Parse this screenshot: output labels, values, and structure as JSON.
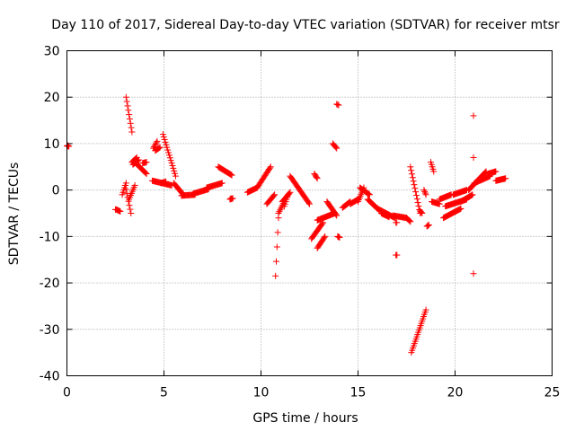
{
  "chart_data": {
    "type": "scatter",
    "title": "Day 110 of 2017, Sidereal Day-to-day VTEC variation (SDTVAR) for receiver mtsr",
    "xlabel": "GPS time / hours",
    "ylabel": "SDTVAR / TECUs",
    "xlim": [
      0,
      25
    ],
    "ylim": [
      -40,
      30
    ],
    "xticks": [
      0,
      5,
      10,
      15,
      20,
      25
    ],
    "yticks": [
      -40,
      -30,
      -20,
      -10,
      0,
      10,
      20,
      30
    ],
    "xtick_labels": [
      "0",
      "5",
      "10",
      "15",
      "20",
      "25"
    ],
    "ytick_labels": [
      "-40",
      "-30",
      "-20",
      "-10",
      "0",
      "10",
      "20",
      "30"
    ],
    "grid": true,
    "marker": "+",
    "color": "#ff0000",
    "segments": [
      [
        0.0,
        9.5,
        0.1,
        9.4
      ],
      [
        2.55,
        -4.2,
        2.75,
        -4.6
      ],
      [
        2.85,
        -1.0,
        3.05,
        1.5
      ],
      [
        3.0,
        1.0,
        3.3,
        -5.0
      ],
      [
        3.05,
        20.0,
        3.35,
        12.5
      ],
      [
        3.2,
        -2.0,
        3.5,
        1.0
      ],
      [
        3.35,
        6.0,
        3.6,
        7.0
      ],
      [
        3.5,
        6.0,
        4.1,
        3.5
      ],
      [
        3.4,
        5.5,
        3.7,
        6.5
      ],
      [
        3.9,
        5.8,
        4.1,
        6.0
      ],
      [
        4.4,
        2.0,
        5.4,
        1.0
      ],
      [
        4.45,
        9.0,
        4.65,
        10.5
      ],
      [
        4.55,
        8.5,
        4.8,
        9.2
      ],
      [
        4.85,
        1.5,
        5.1,
        1.8
      ],
      [
        4.95,
        12.0,
        5.6,
        3.0
      ],
      [
        5.5,
        1.5,
        6.0,
        -1.0
      ],
      [
        5.9,
        -1.2,
        6.6,
        -1.0
      ],
      [
        6.5,
        -0.8,
        7.3,
        0.2
      ],
      [
        7.2,
        0.5,
        8.0,
        1.5
      ],
      [
        7.8,
        5.0,
        8.5,
        3.2
      ],
      [
        8.4,
        -2.0,
        8.55,
        -1.8
      ],
      [
        9.3,
        -0.5,
        9.8,
        0.5
      ],
      [
        9.8,
        0.5,
        10.5,
        5.0
      ],
      [
        10.3,
        -3.0,
        10.7,
        -1.0
      ],
      [
        10.75,
        -18.5,
        10.9,
        -6.0
      ],
      [
        10.9,
        -5.0,
        11.2,
        -2.5
      ],
      [
        11.1,
        -2.5,
        11.5,
        -0.5
      ],
      [
        11.2,
        -3.5,
        11.4,
        -1.0
      ],
      [
        11.5,
        3.0,
        12.5,
        -3.0
      ],
      [
        12.6,
        -10.5,
        13.2,
        -7.0
      ],
      [
        12.75,
        3.5,
        12.9,
        2.5
      ],
      [
        12.9,
        -12.5,
        13.3,
        -10.0
      ],
      [
        12.9,
        -6.5,
        13.8,
        -5.0
      ],
      [
        13.4,
        -2.5,
        13.9,
        -5.5
      ],
      [
        13.7,
        10.0,
        13.9,
        9.0
      ],
      [
        13.9,
        18.5,
        14.0,
        18.3
      ],
      [
        13.95,
        -10.0,
        14.05,
        -10.2
      ],
      [
        14.2,
        -3.8,
        14.6,
        -2.5
      ],
      [
        14.6,
        -3.0,
        15.0,
        -2.0
      ],
      [
        15.0,
        -2.5,
        15.3,
        0.5
      ],
      [
        15.1,
        0.5,
        15.6,
        -1.0
      ],
      [
        15.5,
        -2.0,
        16.0,
        -4.0
      ],
      [
        16.0,
        -4.0,
        16.9,
        -6.0
      ],
      [
        16.2,
        -5.0,
        16.6,
        -5.8
      ],
      [
        16.8,
        -5.5,
        17.5,
        -6.0
      ],
      [
        16.95,
        -7.0,
        17.0,
        -7.0
      ],
      [
        17.0,
        -14.0,
        17.0,
        -14.0
      ],
      [
        17.5,
        -6.0,
        17.7,
        -6.8
      ],
      [
        17.7,
        5.0,
        18.2,
        -5.0
      ],
      [
        17.75,
        -35.0,
        18.5,
        -25.8
      ],
      [
        18.2,
        -4.5,
        18.3,
        -5.0
      ],
      [
        18.4,
        0.0,
        18.5,
        -1.0
      ],
      [
        18.55,
        -7.8,
        18.65,
        -7.5
      ],
      [
        18.75,
        6.0,
        18.9,
        4.0
      ],
      [
        18.8,
        -2.5,
        19.2,
        -3.0
      ],
      [
        19.2,
        -2.0,
        19.8,
        -1.0
      ],
      [
        19.4,
        -6.0,
        20.3,
        -4.0
      ],
      [
        19.5,
        -3.5,
        20.6,
        -2.0
      ],
      [
        19.9,
        -1.0,
        20.6,
        0.0
      ],
      [
        20.3,
        -2.5,
        20.9,
        -1.0
      ],
      [
        20.7,
        0.0,
        21.6,
        4.0
      ],
      [
        21.0,
        1.5,
        21.8,
        3.0
      ],
      [
        21.7,
        3.5,
        22.1,
        4.0
      ],
      [
        22.1,
        2.0,
        22.6,
        2.5
      ]
    ],
    "singles": [
      [
        0.05,
        9.6
      ],
      [
        2.5,
        -4.2
      ],
      [
        8.45,
        -1.8
      ],
      [
        16.95,
        -14.0
      ],
      [
        20.95,
        16.0
      ],
      [
        20.95,
        7.0
      ],
      [
        20.95,
        -18.0
      ],
      [
        18.6,
        -7.7
      ]
    ]
  }
}
